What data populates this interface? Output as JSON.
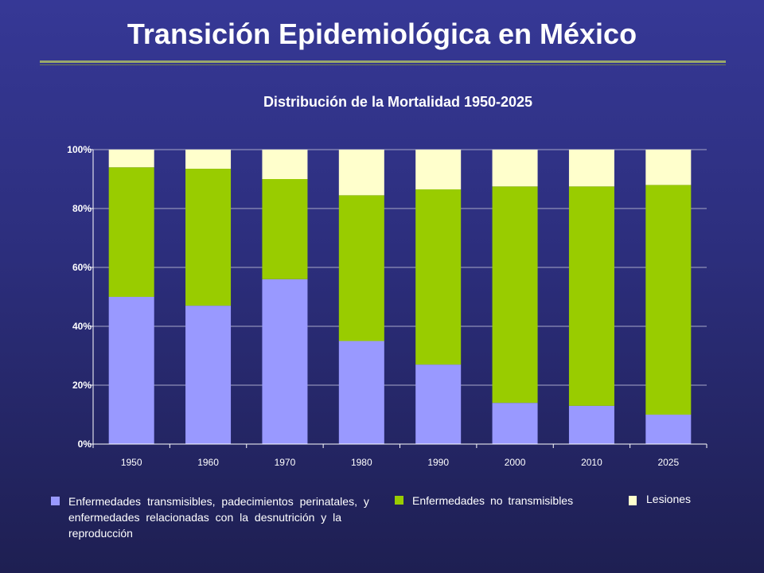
{
  "slide": {
    "title": "Transición Epidemiológica en México"
  },
  "colors": {
    "transmisibles": "#9999ff",
    "no_transmisibles": "#99cc00",
    "lesiones": "#ffffcc",
    "grid": "#a8a8c8",
    "axis_text": "#ffffff"
  },
  "chart_data": {
    "type": "bar",
    "stacked": true,
    "title": "Distribución de la Mortalidad 1950-2025",
    "xlabel": "",
    "ylabel": "",
    "ylim": [
      0,
      100
    ],
    "yticks": [
      "0%",
      "20%",
      "40%",
      "60%",
      "80%",
      "100%"
    ],
    "ytick_values": [
      0,
      20,
      40,
      60,
      80,
      100
    ],
    "grid": true,
    "legend_placement": "bottom",
    "categories": [
      "1950",
      "1960",
      "1970",
      "1980",
      "1990",
      "2000",
      "2010",
      "2025"
    ],
    "series": [
      {
        "name": "Enfermedades transmisibles, padecimientos perinatales, y enfermedades relacionadas con la desnutrición y la reproducción",
        "color_key": "transmisibles",
        "values": [
          50,
          47,
          56,
          35,
          27,
          14,
          13,
          10
        ]
      },
      {
        "name": "Enfermedades no transmisibles",
        "color_key": "no_transmisibles",
        "values": [
          44,
          46.5,
          34,
          49.5,
          59.5,
          73.5,
          74.5,
          78
        ]
      },
      {
        "name": "Lesiones",
        "color_key": "lesiones",
        "values": [
          6,
          6.5,
          10,
          15.5,
          13.5,
          12.5,
          12.5,
          12
        ]
      }
    ]
  },
  "legend": {
    "item1": "Enfermedades transmisibles, padecimientos perinatales, y enfermedades relacionadas con la desnutrición y la reproducción",
    "item2": "Enfermedades no transmisibles",
    "item3": "Lesiones"
  }
}
